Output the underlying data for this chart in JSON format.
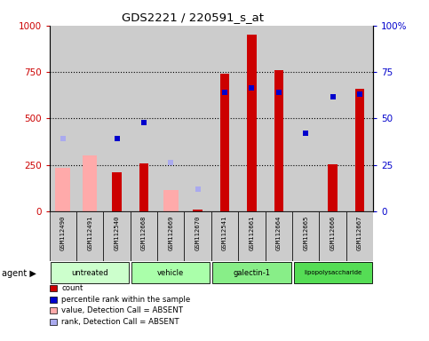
{
  "title": "GDS2221 / 220591_s_at",
  "samples": [
    "GSM112490",
    "GSM112491",
    "GSM112540",
    "GSM112668",
    "GSM112669",
    "GSM112670",
    "GSM112541",
    "GSM112661",
    "GSM112664",
    "GSM112665",
    "GSM112666",
    "GSM112667"
  ],
  "groups": [
    {
      "name": "untreated",
      "indices": [
        0,
        1,
        2
      ]
    },
    {
      "name": "vehicle",
      "indices": [
        3,
        4,
        5
      ]
    },
    {
      "name": "galectin-1",
      "indices": [
        6,
        7,
        8
      ]
    },
    {
      "name": "lipopolysaccharide",
      "indices": [
        9,
        10,
        11
      ]
    }
  ],
  "group_colors": [
    "#ccffcc",
    "#aaffaa",
    "#88ee88",
    "#55dd55"
  ],
  "count": [
    null,
    null,
    210,
    260,
    null,
    10,
    740,
    950,
    760,
    null,
    255,
    660
  ],
  "percentile_rank": [
    null,
    null,
    390,
    480,
    null,
    null,
    640,
    665,
    640,
    420,
    615,
    630
  ],
  "absent_value": [
    235,
    300,
    null,
    null,
    115,
    null,
    null,
    null,
    null,
    null,
    null,
    null
  ],
  "absent_rank": [
    390,
    null,
    null,
    null,
    265,
    120,
    null,
    null,
    null,
    null,
    null,
    null
  ],
  "ylim_left": [
    0,
    1000
  ],
  "ylim_right": [
    0,
    100
  ],
  "yticks_left": [
    0,
    250,
    500,
    750,
    1000
  ],
  "yticks_right": [
    0,
    25,
    50,
    75,
    100
  ],
  "count_color": "#cc0000",
  "percentile_color": "#0000cc",
  "absent_value_color": "#ffaaaa",
  "absent_rank_color": "#aaaaee",
  "sample_bg_color": "#cccccc",
  "plot_bg_color": "#ffffff"
}
